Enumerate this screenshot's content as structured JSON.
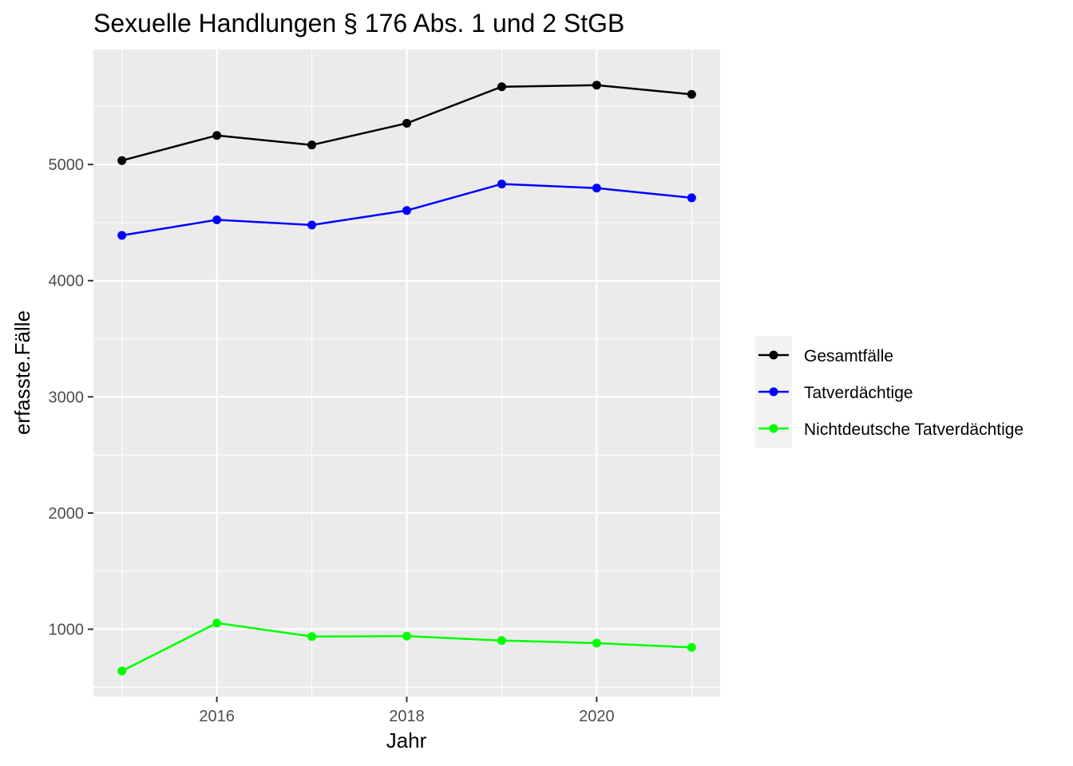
{
  "chart_data": {
    "type": "line",
    "title": "Sexuelle Handlungen § 176 Abs. 1 und 2 StGB",
    "xlabel": "Jahr",
    "ylabel": "erfasste.Fälle",
    "x": [
      2015,
      2016,
      2017,
      2018,
      2019,
      2020,
      2021
    ],
    "xlim": [
      2014.7,
      2021.3
    ],
    "ylim": [
      420,
      5990
    ],
    "x_ticks": [
      2016,
      2018,
      2020
    ],
    "x_tick_labels": [
      "2016",
      "2018",
      "2020"
    ],
    "y_ticks": [
      1000,
      2000,
      3000,
      4000,
      5000
    ],
    "y_tick_labels": [
      "1000",
      "2000",
      "3000",
      "4000",
      "5000"
    ],
    "grid": true,
    "legend_position": "right",
    "series": [
      {
        "name": "Gesamtfälle",
        "color": "#000000",
        "values": [
          5034,
          5250,
          5168,
          5355,
          5669,
          5683,
          5604
        ]
      },
      {
        "name": "Tatverdächtige",
        "color": "#0000ff",
        "values": [
          4390,
          4524,
          4479,
          4604,
          4832,
          4797,
          4713
        ]
      },
      {
        "name": "Nichtdeutsche Tatverdächtige",
        "color": "#00ff00",
        "values": [
          640,
          1053,
          937,
          940,
          903,
          880,
          843
        ]
      }
    ]
  }
}
